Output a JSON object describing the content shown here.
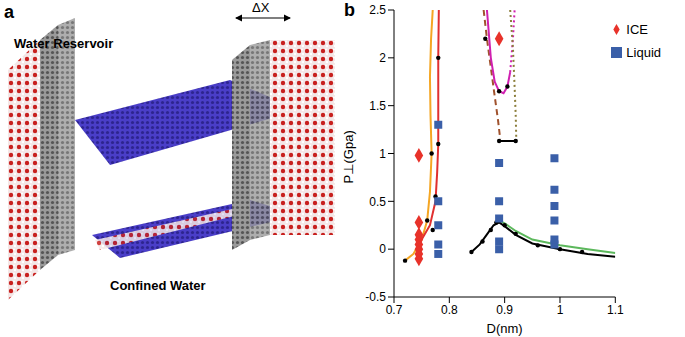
{
  "panel_a": {
    "label": "a",
    "reservoir_label": "Water Reservoir",
    "gap_label": "ΔX",
    "confined_label": "Confined Water"
  },
  "chart_data": {
    "type": "scatter",
    "title": "b",
    "x_label": "D(nm)",
    "y_label": "P⊥(Gpa)",
    "xlim": [
      0.7,
      1.1
    ],
    "xticks": [
      0.7,
      0.8,
      0.9,
      1,
      1.1
    ],
    "ylim": [
      -0.5,
      2.5
    ],
    "yticks": [
      -0.5,
      0,
      0.5,
      1,
      1.5,
      2,
      2.5
    ],
    "legend": "upper right",
    "series": [
      {
        "name": "ICE",
        "color": "#e8322a",
        "marker": "diamond",
        "x": [
          0.745,
          0.745,
          0.745,
          0.745,
          0.745,
          0.745,
          0.745,
          0.745,
          0.89
        ],
        "values": [
          -0.1,
          -0.05,
          0,
          0.05,
          0.1,
          0.15,
          0.28,
          0.98,
          2.2
        ]
      },
      {
        "name": "Liquid",
        "color": "#3a5fa8",
        "marker": "square",
        "x": [
          0.78,
          0.78,
          0.78,
          0.78,
          0.78,
          0.89,
          0.89,
          0.89,
          0.89,
          0.89,
          0.99,
          0.99,
          0.99,
          0.99,
          0.99,
          0.99
        ],
        "values": [
          -0.05,
          0.05,
          0.25,
          0.5,
          1.3,
          0.0,
          0.08,
          0.32,
          0.5,
          0.9,
          0.05,
          0.1,
          0.3,
          0.45,
          0.62,
          0.95
        ]
      }
    ],
    "boundaries": [
      {
        "color": "#f5a623",
        "line_style": "solid",
        "x": [
          0.72,
          0.735,
          0.75,
          0.76,
          0.765,
          0.768,
          0.766,
          0.765,
          0.767,
          0.77
        ],
        "values": [
          -0.12,
          -0.05,
          0.1,
          0.3,
          0.6,
          1.0,
          1.4,
          1.8,
          2.2,
          2.5
        ]
      },
      {
        "color": "#e03030",
        "line_style": "solid",
        "x": [
          0.75,
          0.765,
          0.775,
          0.778,
          0.78,
          0.78,
          0.78,
          0.781
        ],
        "values": [
          0.1,
          0.25,
          0.5,
          0.8,
          1.1,
          1.5,
          2.0,
          2.5
        ]
      },
      {
        "color": "#a0522d",
        "line_style": "dashed",
        "x": [
          0.862,
          0.868,
          0.875,
          0.882,
          0.888,
          0.892
        ],
        "values": [
          2.5,
          2.2,
          1.9,
          1.6,
          1.35,
          1.15
        ]
      },
      {
        "color": "#d020b0",
        "line_style": "solid",
        "x": [
          0.868,
          0.875,
          0.882,
          0.89,
          0.898,
          0.905,
          0.91
        ],
        "values": [
          2.5,
          2.0,
          1.75,
          1.65,
          1.63,
          1.7,
          1.85
        ]
      },
      {
        "color": "#d020b0",
        "line_style": "dotted",
        "x": [
          0.91,
          0.915,
          0.918
        ],
        "values": [
          1.85,
          2.2,
          2.5
        ]
      },
      {
        "color": "#8b7d3a",
        "line_style": "dotted",
        "x": [
          0.91,
          0.915,
          0.918,
          0.92,
          0.921
        ],
        "values": [
          2.5,
          2.1,
          1.7,
          1.4,
          1.15
        ]
      },
      {
        "color": "#000000",
        "line_style": "solid",
        "x": [
          0.89,
          0.921
        ],
        "values": [
          1.13,
          1.13
        ]
      },
      {
        "color": "#5cb85c",
        "line_style": "solid",
        "x": [
          0.885,
          0.89,
          0.9,
          0.92,
          0.95,
          1.0,
          1.05,
          1.1
        ],
        "values": [
          0.29,
          0.3,
          0.27,
          0.19,
          0.1,
          0.04,
          0.0,
          -0.04
        ]
      },
      {
        "color": "#000000",
        "line_style": "solid",
        "x": [
          0.84,
          0.855,
          0.87,
          0.88,
          0.89,
          0.9,
          0.92,
          0.95,
          1.0,
          1.05,
          1.1
        ],
        "values": [
          -0.03,
          0.05,
          0.17,
          0.25,
          0.28,
          0.24,
          0.15,
          0.06,
          0.0,
          -0.05,
          -0.08
        ]
      }
    ],
    "boundary_points": {
      "color": "#000000",
      "x": [
        0.72,
        0.745,
        0.76,
        0.768,
        0.77,
        0.775,
        0.78,
        0.78,
        0.84,
        0.86,
        0.875,
        0.885,
        0.89,
        0.9,
        0.92,
        0.96,
        1.0,
        1.04,
        0.865,
        0.89,
        0.92,
        0.89,
        0.905
      ],
      "values": [
        -0.12,
        0.0,
        0.3,
        1.0,
        0.2,
        0.55,
        1.1,
        2.0,
        -0.03,
        0.08,
        0.2,
        0.28,
        0.3,
        0.25,
        0.16,
        0.04,
        0.0,
        -0.03,
        2.2,
        1.13,
        1.13,
        1.65,
        1.7
      ]
    }
  }
}
